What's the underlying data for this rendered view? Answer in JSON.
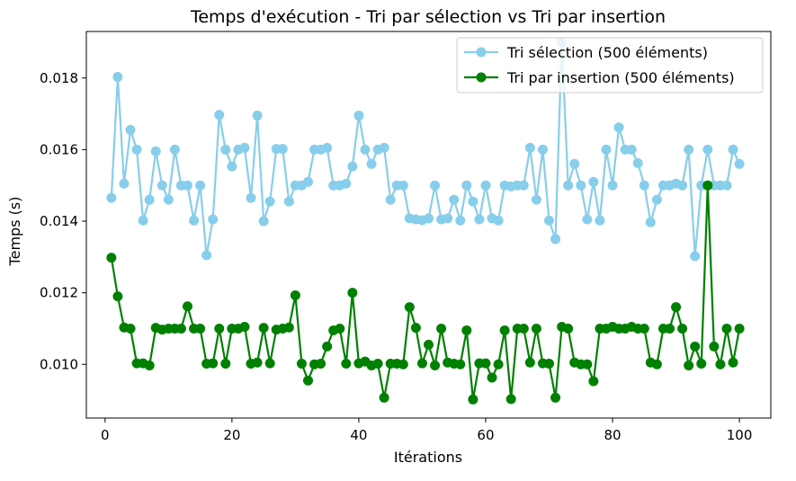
{
  "chart_data": {
    "type": "line",
    "title": "Temps d'exécution - Tri par sélection vs Tri par insertion",
    "xlabel": "Itérations",
    "ylabel": "Temps (s)",
    "xlim": [
      -2.95,
      104.95
    ],
    "ylim": [
      0.0085,
      0.0193
    ],
    "xticks": [
      0,
      20,
      40,
      60,
      80,
      100
    ],
    "yticks": [
      0.01,
      0.012,
      0.014,
      0.016,
      0.018
    ],
    "xtick_labels": [
      "0",
      "20",
      "40",
      "60",
      "80",
      "100"
    ],
    "ytick_labels": [
      "0.010",
      "0.012",
      "0.014",
      "0.016",
      "0.018"
    ],
    "grid": false,
    "legend_position": "upper right",
    "x": [
      1,
      2,
      3,
      4,
      5,
      6,
      7,
      8,
      9,
      10,
      11,
      12,
      13,
      14,
      15,
      16,
      17,
      18,
      19,
      20,
      21,
      22,
      23,
      24,
      25,
      26,
      27,
      28,
      29,
      30,
      31,
      32,
      33,
      34,
      35,
      36,
      37,
      38,
      39,
      40,
      41,
      42,
      43,
      44,
      45,
      46,
      47,
      48,
      49,
      50,
      51,
      52,
      53,
      54,
      55,
      56,
      57,
      58,
      59,
      60,
      61,
      62,
      63,
      64,
      65,
      66,
      67,
      68,
      69,
      70,
      71,
      72,
      73,
      74,
      75,
      76,
      77,
      78,
      79,
      80,
      81,
      82,
      83,
      84,
      85,
      86,
      87,
      88,
      89,
      90,
      91,
      92,
      93,
      94,
      95,
      96,
      97,
      98,
      99,
      100
    ],
    "series": [
      {
        "name": "Tri sélection (500 éléments)",
        "color": "#87ceeb",
        "values": [
          0.01465,
          0.01803,
          0.01505,
          0.01655,
          0.016,
          0.01402,
          0.0146,
          0.01595,
          0.015,
          0.0146,
          0.016,
          0.015,
          0.015,
          0.01402,
          0.015,
          0.01305,
          0.01405,
          0.01697,
          0.016,
          0.01553,
          0.016,
          0.01605,
          0.01465,
          0.01695,
          0.014,
          0.01455,
          0.01602,
          0.01602,
          0.01455,
          0.015,
          0.015,
          0.0151,
          0.016,
          0.016,
          0.01605,
          0.015,
          0.015,
          0.01505,
          0.01553,
          0.01695,
          0.016,
          0.0156,
          0.016,
          0.01605,
          0.0146,
          0.015,
          0.015,
          0.01408,
          0.01405,
          0.01403,
          0.01408,
          0.015,
          0.01405,
          0.01408,
          0.0146,
          0.01402,
          0.015,
          0.01455,
          0.01405,
          0.015,
          0.01408,
          0.01402,
          0.015,
          0.01497,
          0.015,
          0.015,
          0.01605,
          0.0146,
          0.016,
          0.01402,
          0.0135,
          0.019,
          0.015,
          0.0156,
          0.015,
          0.01405,
          0.0151,
          0.01402,
          0.016,
          0.015,
          0.01662,
          0.016,
          0.016,
          0.01562,
          0.015,
          0.01397,
          0.0146,
          0.015,
          0.015,
          0.01505,
          0.015,
          0.016,
          0.01302,
          0.015,
          0.016,
          0.015,
          0.015,
          0.015,
          0.016,
          0.0156
        ]
      },
      {
        "name": "Tri par insertion (500 éléments)",
        "color": "#008000",
        "values": [
          0.01298,
          0.0119,
          0.01103,
          0.011,
          0.01003,
          0.01003,
          0.00997,
          0.01102,
          0.01097,
          0.011,
          0.011,
          0.011,
          0.01162,
          0.011,
          0.011,
          0.01002,
          0.01003,
          0.011,
          0.01002,
          0.011,
          0.011,
          0.01105,
          0.01002,
          0.01005,
          0.01102,
          0.01003,
          0.01097,
          0.011,
          0.01103,
          0.01193,
          0.01002,
          0.00955,
          0.01,
          0.01002,
          0.0105,
          0.01095,
          0.011,
          0.01002,
          0.012,
          0.01003,
          0.01008,
          0.00997,
          0.01002,
          0.00907,
          0.01002,
          0.01002,
          0.01,
          0.0116,
          0.01102,
          0.01003,
          0.01055,
          0.00997,
          0.011,
          0.01005,
          0.01002,
          0.01,
          0.01095,
          0.00902,
          0.01003,
          0.01003,
          0.00963,
          0.01,
          0.01095,
          0.00903,
          0.011,
          0.011,
          0.01005,
          0.011,
          0.01003,
          0.01002,
          0.00907,
          0.01105,
          0.011,
          0.01005,
          0.01,
          0.01,
          0.00953,
          0.011,
          0.011,
          0.01105,
          0.011,
          0.011,
          0.01105,
          0.011,
          0.011,
          0.01005,
          0.01,
          0.011,
          0.011,
          0.0116,
          0.011,
          0.00997,
          0.0105,
          0.01002,
          0.015,
          0.0105,
          0.01,
          0.011,
          0.01005,
          0.011
        ]
      }
    ]
  }
}
